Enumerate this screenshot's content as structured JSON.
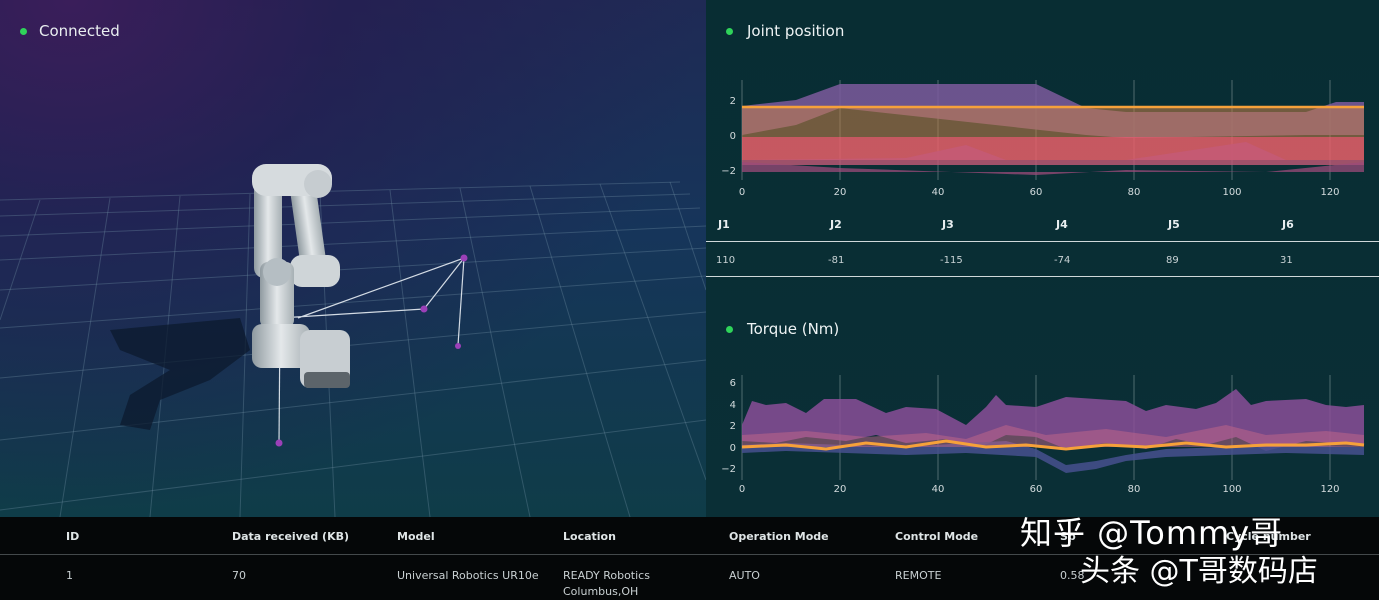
{
  "scene": {
    "status_label": "Connected"
  },
  "joint_position": {
    "title": "Joint position",
    "y_ticks": [
      "2",
      "0",
      "−2"
    ],
    "x_ticks": [
      "0",
      "20",
      "40",
      "60",
      "80",
      "100",
      "120"
    ],
    "table": {
      "headers": [
        "J1",
        "J2",
        "J3",
        "J4",
        "J5",
        "J6"
      ],
      "values": [
        "110",
        "-81",
        "-115",
        "-74",
        "89",
        "31"
      ]
    }
  },
  "torque": {
    "title": "Torque (Nm)",
    "y_ticks": [
      "6",
      "4",
      "2",
      "0",
      "−2"
    ],
    "x_ticks": [
      "0",
      "20",
      "40",
      "60",
      "80",
      "100",
      "120"
    ]
  },
  "devices": {
    "headers": [
      "ID",
      "Data received (KB)",
      "Model",
      "Location",
      "Operation Mode",
      "Control Mode",
      "Sp",
      "Cycle number"
    ],
    "row": {
      "id": "1",
      "data_received": "70",
      "model": "Universal Robotics UR10e",
      "location_line1": "READY Robotics",
      "location_line2": "Columbus,OH",
      "operation_mode": "AUTO",
      "control_mode": "REMOTE",
      "speed": "0.58"
    }
  },
  "watermark": {
    "line1": "知乎 @Tommy哥",
    "line2": "头条 @T哥数码店"
  },
  "colors": {
    "status_green": "#2fd35a",
    "orange": "#f6a13a",
    "purple": "#8a5aa8",
    "salmon": "#e8606a"
  }
}
